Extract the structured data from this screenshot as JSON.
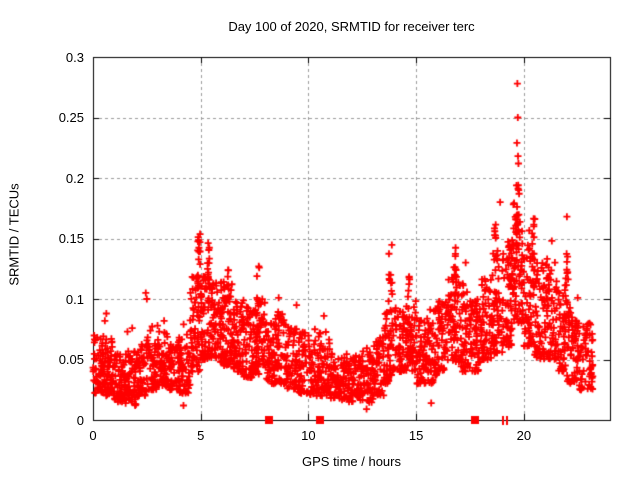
{
  "chart_data": {
    "type": "scatter",
    "title": "Day 100 of 2020, SRMTID for receiver terc",
    "xlabel": "GPS time / hours",
    "ylabel": "SRMTID / TECUs",
    "xlim": [
      0,
      24
    ],
    "ylim": [
      0,
      0.3
    ],
    "xtick_values": [
      0,
      5,
      10,
      15,
      20
    ],
    "xtick_labels": [
      "0",
      "5",
      "10",
      "15",
      "20"
    ],
    "ytick_values": [
      0,
      0.05,
      0.1,
      0.15,
      0.2,
      0.25,
      0.3
    ],
    "ytick_labels": [
      "0",
      "0.05",
      "0.1",
      "0.15",
      "0.2",
      "0.25",
      "0.3"
    ],
    "grid": {
      "show": true,
      "style": "dashed",
      "color": "#9b9b9b"
    },
    "marker": {
      "shape": "plus",
      "color": "#ff0000",
      "size": 7
    },
    "border_color": "#000000",
    "background": "#ffffff",
    "legend": "none",
    "series_name": "SRMTID",
    "x_data_end": 23.2,
    "y_max_point": [
      19.7,
      0.278
    ],
    "envelope_bins": [
      [
        0.0,
        0.5,
        60,
        0.022,
        0.072
      ],
      [
        0.5,
        1.0,
        60,
        0.02,
        0.068
      ],
      [
        1.0,
        1.5,
        55,
        0.015,
        0.055
      ],
      [
        1.5,
        2.0,
        55,
        0.012,
        0.058
      ],
      [
        2.0,
        2.5,
        50,
        0.02,
        0.065
      ],
      [
        2.5,
        3.0,
        55,
        0.025,
        0.08
      ],
      [
        3.0,
        3.5,
        55,
        0.028,
        0.075
      ],
      [
        3.5,
        4.0,
        50,
        0.025,
        0.065
      ],
      [
        4.0,
        4.5,
        55,
        0.022,
        0.08
      ],
      [
        4.5,
        5.0,
        60,
        0.04,
        0.12
      ],
      [
        5.0,
        5.5,
        65,
        0.05,
        0.125
      ],
      [
        5.5,
        6.0,
        65,
        0.048,
        0.115
      ],
      [
        6.0,
        6.5,
        70,
        0.045,
        0.115
      ],
      [
        6.5,
        7.0,
        65,
        0.04,
        0.1
      ],
      [
        7.0,
        7.5,
        60,
        0.035,
        0.095
      ],
      [
        7.5,
        8.0,
        60,
        0.038,
        0.1
      ],
      [
        8.0,
        8.5,
        55,
        0.03,
        0.085
      ],
      [
        8.5,
        9.0,
        55,
        0.03,
        0.09
      ],
      [
        9.0,
        9.5,
        50,
        0.025,
        0.08
      ],
      [
        9.5,
        10.0,
        50,
        0.022,
        0.075
      ],
      [
        10.0,
        10.5,
        50,
        0.02,
        0.07
      ],
      [
        10.5,
        11.0,
        50,
        0.02,
        0.075
      ],
      [
        11.0,
        11.5,
        50,
        0.018,
        0.055
      ],
      [
        11.5,
        12.0,
        50,
        0.015,
        0.055
      ],
      [
        12.0,
        12.5,
        50,
        0.015,
        0.055
      ],
      [
        12.5,
        13.0,
        50,
        0.014,
        0.06
      ],
      [
        13.0,
        13.5,
        50,
        0.02,
        0.07
      ],
      [
        13.5,
        14.0,
        55,
        0.03,
        0.09
      ],
      [
        14.0,
        14.5,
        55,
        0.04,
        0.095
      ],
      [
        14.5,
        15.0,
        55,
        0.04,
        0.1
      ],
      [
        15.0,
        15.5,
        55,
        0.03,
        0.085
      ],
      [
        15.5,
        16.0,
        55,
        0.03,
        0.095
      ],
      [
        16.0,
        16.5,
        55,
        0.04,
        0.1
      ],
      [
        16.5,
        17.0,
        60,
        0.048,
        0.12
      ],
      [
        17.0,
        17.5,
        55,
        0.04,
        0.115
      ],
      [
        17.5,
        18.0,
        55,
        0.04,
        0.1
      ],
      [
        18.0,
        18.5,
        55,
        0.05,
        0.12
      ],
      [
        18.5,
        19.0,
        60,
        0.055,
        0.14
      ],
      [
        19.0,
        19.5,
        60,
        0.06,
        0.15
      ],
      [
        19.5,
        20.0,
        70,
        0.08,
        0.18
      ],
      [
        20.0,
        20.5,
        60,
        0.06,
        0.16
      ],
      [
        20.5,
        21.0,
        55,
        0.05,
        0.13
      ],
      [
        21.0,
        21.5,
        55,
        0.05,
        0.135
      ],
      [
        21.5,
        22.0,
        55,
        0.04,
        0.12
      ],
      [
        22.0,
        22.5,
        55,
        0.03,
        0.1
      ],
      [
        22.5,
        23.2,
        65,
        0.025,
        0.08
      ]
    ],
    "spike_columns": [
      [
        4.9,
        0.08,
        16,
        0.085,
        0.157
      ],
      [
        5.35,
        0.07,
        10,
        0.1,
        0.148
      ],
      [
        6.3,
        0.06,
        6,
        0.095,
        0.126
      ],
      [
        7.65,
        0.07,
        7,
        0.095,
        0.133
      ],
      [
        13.8,
        0.09,
        12,
        0.09,
        0.145
      ],
      [
        14.68,
        0.06,
        6,
        0.098,
        0.122
      ],
      [
        16.8,
        0.08,
        10,
        0.1,
        0.155
      ],
      [
        18.7,
        0.08,
        8,
        0.12,
        0.165
      ],
      [
        19.3,
        0.08,
        8,
        0.11,
        0.155
      ],
      [
        19.7,
        0.08,
        15,
        0.13,
        0.2
      ],
      [
        20.45,
        0.06,
        6,
        0.12,
        0.17
      ],
      [
        21.1,
        0.06,
        6,
        0.1,
        0.136
      ],
      [
        22.02,
        0.04,
        6,
        0.115,
        0.145
      ]
    ],
    "outlier_points": [
      [
        0.55,
        0.082
      ],
      [
        0.62,
        0.088
      ],
      [
        1.6,
        0.073
      ],
      [
        1.82,
        0.076
      ],
      [
        2.45,
        0.105
      ],
      [
        2.5,
        0.1
      ],
      [
        3.3,
        0.082
      ],
      [
        4.2,
        0.012
      ],
      [
        8.62,
        0.101
      ],
      [
        9.45,
        0.095
      ],
      [
        10.3,
        0.075
      ],
      [
        10.72,
        0.086
      ],
      [
        12.7,
        0.009
      ],
      [
        15.7,
        0.014
      ],
      [
        17.3,
        0.13
      ],
      [
        18.9,
        0.18
      ],
      [
        19.68,
        0.229
      ],
      [
        19.7,
        0.278
      ],
      [
        19.72,
        0.25
      ],
      [
        19.73,
        0.218
      ],
      [
        19.75,
        0.212
      ],
      [
        19.74,
        0.194
      ],
      [
        19.76,
        0.19
      ],
      [
        19.78,
        0.187
      ],
      [
        21.3,
        0.148
      ],
      [
        22.0,
        0.168
      ],
      [
        22.03,
        0.135
      ],
      [
        22.5,
        0.101
      ],
      [
        23.05,
        0.08
      ]
    ],
    "axis_markers": {
      "color": "#ff0000",
      "squares_x": [
        8.17,
        10.54,
        17.74
      ],
      "thin_tick_x": [
        19.05,
        19.22
      ]
    }
  }
}
